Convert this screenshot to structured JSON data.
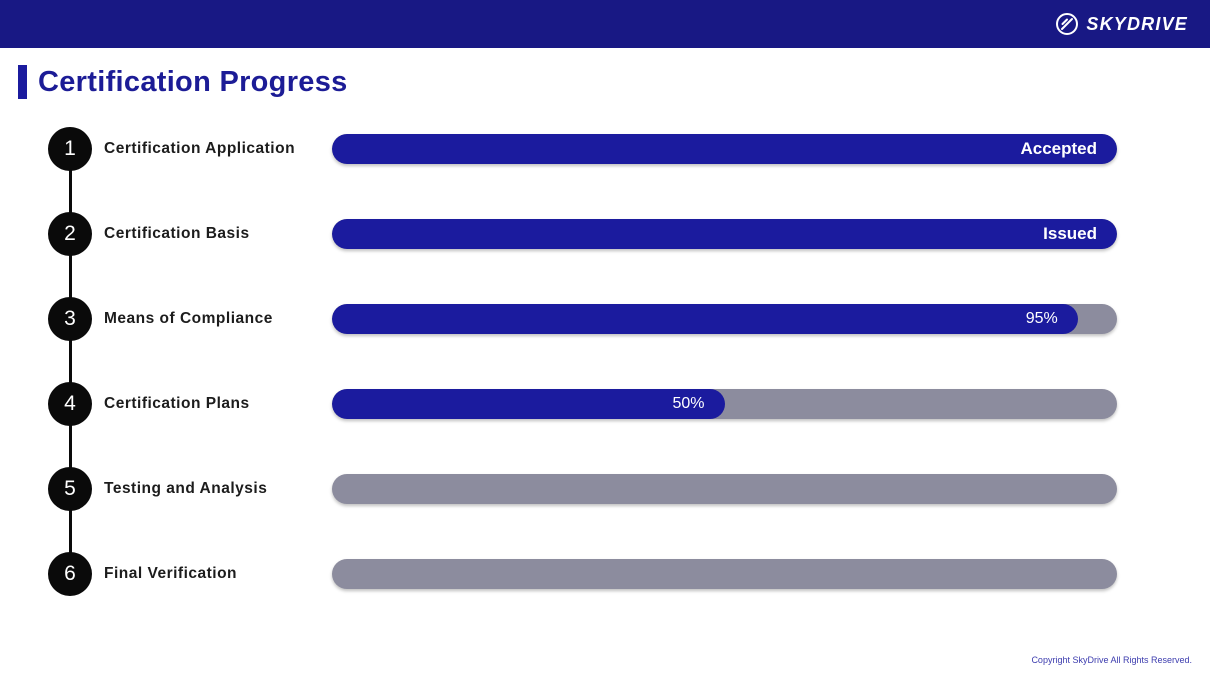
{
  "header": {
    "brand": "SKYDRIVE"
  },
  "page": {
    "title": "Certification Progress"
  },
  "steps": [
    {
      "number": "1",
      "label": "Certification Application",
      "status": "Accepted",
      "percent": 100,
      "status_bold": true
    },
    {
      "number": "2",
      "label": "Certification Basis",
      "status": "Issued",
      "percent": 100,
      "status_bold": true
    },
    {
      "number": "3",
      "label": "Means of Compliance",
      "status": "95%",
      "percent": 95,
      "status_bold": false
    },
    {
      "number": "4",
      "label": "Certification Plans",
      "status": "50%",
      "percent": 50,
      "status_bold": false
    },
    {
      "number": "5",
      "label": "Testing and Analysis",
      "status": "",
      "percent": 0,
      "status_bold": false
    },
    {
      "number": "6",
      "label": "Final Verification",
      "status": "",
      "percent": 0,
      "status_bold": false
    }
  ],
  "footer": {
    "copyright": "Copyright SkyDrive All Rights Reserved."
  },
  "colors": {
    "header_bg": "#181884",
    "accent": "#1b1b9e",
    "accent_text": "#1c1c96",
    "track": "#8c8c9e",
    "node": "#0a0a0a",
    "copyright": "#3c3cae"
  },
  "chart_data": {
    "type": "bar",
    "orientation": "horizontal",
    "title": "Certification Progress",
    "categories": [
      "Certification Application",
      "Certification Basis",
      "Means of Compliance",
      "Certification Plans",
      "Testing and Analysis",
      "Final Verification"
    ],
    "values": [
      100,
      100,
      95,
      50,
      0,
      0
    ],
    "bar_labels": [
      "Accepted",
      "Issued",
      "95%",
      "50%",
      "",
      ""
    ],
    "xlim": [
      0,
      100
    ],
    "grid": false,
    "legend": false
  }
}
